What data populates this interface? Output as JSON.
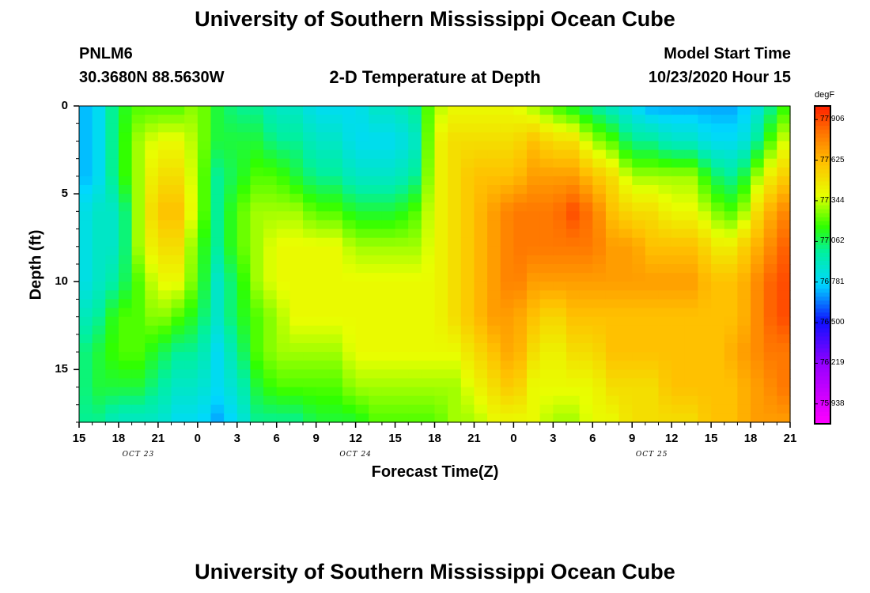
{
  "header": {
    "title": "University of Southern Mississippi Ocean Cube",
    "station": "PNLM6",
    "coords": "30.3680N 88.5630W",
    "subtitle": "2-D Temperature at Depth",
    "model_label": "Model Start Time",
    "model_time": "10/23/2020 Hour 15",
    "footer_title": "University of Southern Mississippi Ocean Cube"
  },
  "chart_data": {
    "type": "heatmap",
    "title": "2-D Temperature at Depth",
    "xlabel": "Forecast Time(Z)",
    "ylabel": "Depth (ft)",
    "x_ticks": [
      "15",
      "18",
      "21",
      "0",
      "3",
      "6",
      "9",
      "12",
      "15",
      "18",
      "21",
      "0",
      "3",
      "6",
      "9",
      "12",
      "15",
      "18",
      "21"
    ],
    "x_hours": [
      0,
      3,
      6,
      9,
      12,
      15,
      18,
      21,
      24,
      27,
      30,
      33,
      36,
      39,
      42,
      45,
      48,
      51,
      54
    ],
    "x_range_hours": [
      0,
      54
    ],
    "date_labels": [
      {
        "text": "OCT 23",
        "hour": 4.5
      },
      {
        "text": "OCT 24",
        "hour": 21
      },
      {
        "text": "OCT 25",
        "hour": 43.5
      }
    ],
    "y_ticks": [
      "0",
      "5",
      "10",
      "15"
    ],
    "y_values": [
      0,
      5,
      10,
      15
    ],
    "ylim": [
      0,
      18
    ],
    "y_inverted": true,
    "colorbar": {
      "unit": "degF",
      "min": 75.8,
      "max": 78.0,
      "labels": [
        "77.906",
        "77.625",
        "77.344",
        "77.062",
        "76.781",
        "76.500",
        "76.219",
        "75.938"
      ],
      "label_values": [
        77.906,
        77.625,
        77.344,
        77.062,
        76.781,
        76.5,
        76.219,
        75.938
      ]
    },
    "profiles": {
      "hours": [
        0,
        1.5,
        3,
        4.5,
        6,
        7.5,
        9,
        10.5,
        12,
        13.5,
        15,
        16.5,
        18,
        19.5,
        21,
        22.5,
        24,
        25.5,
        27,
        28.5,
        30,
        31.5,
        33,
        34.5,
        36,
        37.5,
        39,
        40.5,
        42,
        43.5,
        45,
        46.5,
        48,
        49,
        50,
        51,
        52,
        53,
        54
      ],
      "depths": [
        0,
        2,
        4,
        6,
        8,
        10,
        12,
        14,
        16,
        18
      ],
      "temperature_degF": [
        [
          76.7,
          76.7,
          76.7,
          76.8,
          76.8,
          76.8,
          76.9,
          77.0,
          77.0,
          77.0
        ],
        [
          76.8,
          76.8,
          76.8,
          76.9,
          76.9,
          76.9,
          77.0,
          77.1,
          77.1,
          77.0
        ],
        [
          77.1,
          77.1,
          77.1,
          76.9,
          76.9,
          77.0,
          77.2,
          77.2,
          77.1,
          76.9
        ],
        [
          77.2,
          77.3,
          77.3,
          77.3,
          77.3,
          77.2,
          77.2,
          77.2,
          77.1,
          76.9
        ],
        [
          77.2,
          77.4,
          77.5,
          77.6,
          77.5,
          77.4,
          77.3,
          77.1,
          77.0,
          76.9
        ],
        [
          77.2,
          77.4,
          77.5,
          77.6,
          77.5,
          77.4,
          77.2,
          77.0,
          76.9,
          76.8
        ],
        [
          77.3,
          77.3,
          77.3,
          77.3,
          77.2,
          77.2,
          77.1,
          77.0,
          76.9,
          76.8
        ],
        [
          77.1,
          77.1,
          77.0,
          77.0,
          77.0,
          76.9,
          76.9,
          76.8,
          76.8,
          76.7
        ],
        [
          77.0,
          77.1,
          77.1,
          77.2,
          77.2,
          77.1,
          77.1,
          77.0,
          76.9,
          76.8
        ],
        [
          77.0,
          77.1,
          77.2,
          77.3,
          77.3,
          77.3,
          77.2,
          77.2,
          77.1,
          77.0
        ],
        [
          76.9,
          77.0,
          77.2,
          77.3,
          77.4,
          77.4,
          77.3,
          77.3,
          77.2,
          77.0
        ],
        [
          76.9,
          77.0,
          77.1,
          77.3,
          77.4,
          77.4,
          77.4,
          77.3,
          77.2,
          77.0
        ],
        [
          76.8,
          76.9,
          77.0,
          77.2,
          77.4,
          77.4,
          77.4,
          77.3,
          77.2,
          77.1
        ],
        [
          76.8,
          76.9,
          77.0,
          77.2,
          77.4,
          77.4,
          77.4,
          77.3,
          77.2,
          77.1
        ],
        [
          76.8,
          76.8,
          76.9,
          77.1,
          77.3,
          77.4,
          77.4,
          77.4,
          77.3,
          77.1
        ],
        [
          76.9,
          76.8,
          76.9,
          77.1,
          77.3,
          77.4,
          77.4,
          77.4,
          77.3,
          77.2
        ],
        [
          76.9,
          76.8,
          76.9,
          77.1,
          77.3,
          77.4,
          77.4,
          77.4,
          77.3,
          77.2
        ],
        [
          77.0,
          76.9,
          77.0,
          77.2,
          77.3,
          77.4,
          77.4,
          77.4,
          77.3,
          77.2
        ],
        [
          77.3,
          77.4,
          77.4,
          77.4,
          77.4,
          77.4,
          77.4,
          77.4,
          77.3,
          77.2
        ],
        [
          77.4,
          77.5,
          77.5,
          77.5,
          77.5,
          77.5,
          77.5,
          77.4,
          77.3,
          77.3
        ],
        [
          77.4,
          77.5,
          77.6,
          77.6,
          77.6,
          77.6,
          77.6,
          77.5,
          77.4,
          77.3
        ],
        [
          77.4,
          77.5,
          77.6,
          77.7,
          77.7,
          77.7,
          77.7,
          77.6,
          77.5,
          77.4
        ],
        [
          77.4,
          77.5,
          77.6,
          77.8,
          77.8,
          77.8,
          77.7,
          77.7,
          77.6,
          77.4
        ],
        [
          77.3,
          77.6,
          77.7,
          77.8,
          77.8,
          77.7,
          77.6,
          77.5,
          77.4,
          77.4
        ],
        [
          77.2,
          77.5,
          77.7,
          77.8,
          77.8,
          77.7,
          77.5,
          77.4,
          77.4,
          77.3
        ],
        [
          77.1,
          77.5,
          77.7,
          77.9,
          77.8,
          77.7,
          77.6,
          77.5,
          77.4,
          77.3
        ],
        [
          77.0,
          77.3,
          77.6,
          77.8,
          77.8,
          77.7,
          77.6,
          77.5,
          77.4,
          77.4
        ],
        [
          76.9,
          77.2,
          77.5,
          77.6,
          77.7,
          77.7,
          77.6,
          77.6,
          77.5,
          77.4
        ],
        [
          76.8,
          77.0,
          77.3,
          77.5,
          77.7,
          77.7,
          77.6,
          77.6,
          77.5,
          77.5
        ],
        [
          76.7,
          77.0,
          77.3,
          77.5,
          77.6,
          77.7,
          77.6,
          77.6,
          77.5,
          77.5
        ],
        [
          76.7,
          76.9,
          77.3,
          77.4,
          77.6,
          77.7,
          77.6,
          77.6,
          77.6,
          77.5
        ],
        [
          76.7,
          76.9,
          77.3,
          77.4,
          77.6,
          77.7,
          77.6,
          77.6,
          77.6,
          77.5
        ],
        [
          76.7,
          76.8,
          77.1,
          77.3,
          77.5,
          77.6,
          77.6,
          77.6,
          77.6,
          77.6
        ],
        [
          76.7,
          76.8,
          77.0,
          77.2,
          77.4,
          77.6,
          77.6,
          77.6,
          77.6,
          77.6
        ],
        [
          76.7,
          76.8,
          77.0,
          77.2,
          77.5,
          77.6,
          77.6,
          77.7,
          77.6,
          77.6
        ],
        [
          76.8,
          76.9,
          77.2,
          77.4,
          77.6,
          77.7,
          77.7,
          77.7,
          77.7,
          77.7
        ],
        [
          76.9,
          77.1,
          77.4,
          77.6,
          77.7,
          77.8,
          77.8,
          77.8,
          77.7,
          77.7
        ],
        [
          77.1,
          77.3,
          77.5,
          77.7,
          77.8,
          77.9,
          77.9,
          77.8,
          77.8,
          77.7
        ],
        [
          77.2,
          77.4,
          77.6,
          77.8,
          77.9,
          77.9,
          77.9,
          77.8,
          77.8,
          77.7
        ]
      ]
    }
  }
}
